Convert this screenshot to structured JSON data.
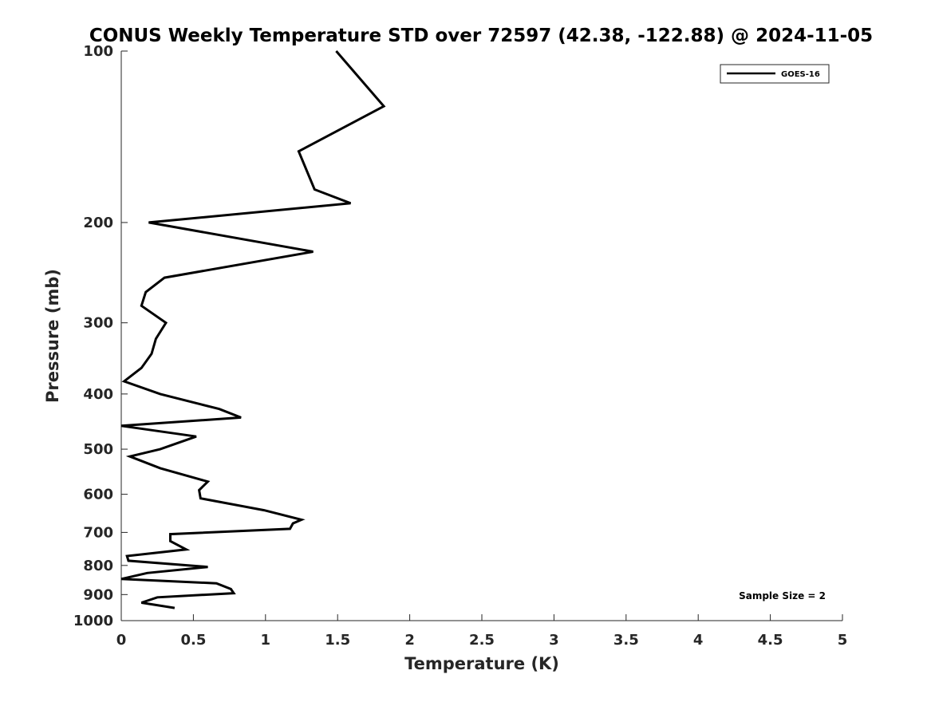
{
  "chart_data": {
    "type": "line",
    "title": "CONUS Weekly Temperature STD over 72597 (42.38, -122.88) @ 2024-11-05",
    "xlabel": "Temperature (K)",
    "ylabel": "Pressure (mb)",
    "xlim": [
      0,
      5
    ],
    "ylim": [
      100,
      1000
    ],
    "y_scale": "log",
    "y_reversed": true,
    "grid": false,
    "legend_position": "top-right",
    "x_ticks": [
      "0",
      "0.5",
      "1",
      "1.5",
      "2",
      "2.5",
      "3",
      "3.5",
      "4",
      "4.5",
      "5"
    ],
    "y_ticks": [
      "100",
      "200",
      "300",
      "400",
      "500",
      "600",
      "700",
      "800",
      "900",
      "1000"
    ],
    "series": [
      {
        "name": "GOES-16",
        "color": "#000000",
        "x": [
          1.49,
          1.82,
          1.23,
          1.34,
          1.59,
          0.19,
          1.33,
          0.3,
          0.17,
          0.14,
          0.31,
          0.24,
          0.21,
          0.14,
          0.02,
          0.27,
          0.68,
          0.83,
          0.0,
          0.52,
          0.27,
          0.06,
          0.27,
          0.6,
          0.54,
          0.55,
          0.99,
          1.25,
          1.19,
          1.17,
          0.34,
          0.34,
          0.45,
          0.04,
          0.05,
          0.6,
          0.18,
          0.0,
          0.66,
          0.76,
          0.78,
          0.25,
          0.14,
          0.37
        ],
        "y": [
          100,
          125,
          150,
          175,
          185,
          200,
          225,
          250,
          265,
          280,
          300,
          320,
          340,
          360,
          380,
          400,
          425,
          440,
          455,
          475,
          500,
          515,
          540,
          570,
          590,
          610,
          640,
          665,
          675,
          690,
          705,
          725,
          750,
          770,
          785,
          805,
          825,
          845,
          860,
          880,
          895,
          910,
          930,
          950
        ]
      }
    ],
    "annotations": [
      "Sample Size = 2"
    ]
  }
}
